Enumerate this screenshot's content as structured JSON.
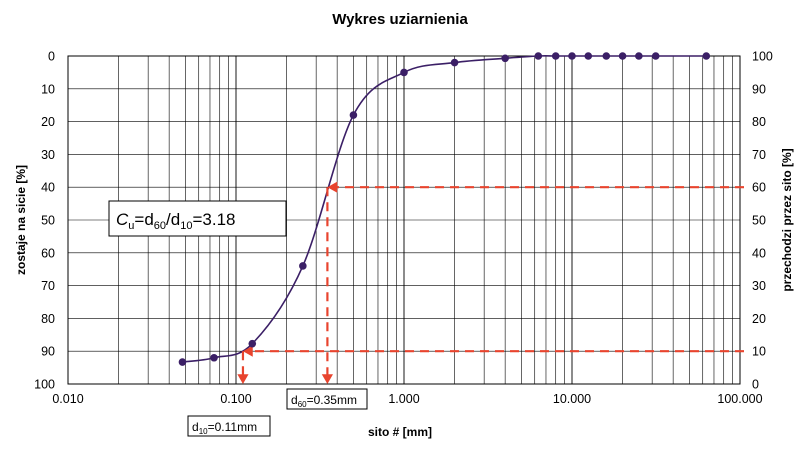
{
  "chart_data": {
    "type": "scatter",
    "title": "Wykres uziarnienia",
    "xlabel": "sito # [mm]",
    "ylabel_left": "zostaje na sicie [%]",
    "ylabel_right": "przechodzi przez sito [%]",
    "x_scale": "log",
    "xlim": [
      0.01,
      100
    ],
    "ylim": [
      0,
      100
    ],
    "x_tick_labels": [
      "0.010",
      "0.100",
      "1.000",
      "10.000",
      "100.000"
    ],
    "y_left_tick_labels": [
      "0",
      "10",
      "20",
      "30",
      "40",
      "50",
      "60",
      "70",
      "80",
      "90",
      "100"
    ],
    "y_right_tick_labels": [
      "100",
      "90",
      "80",
      "70",
      "60",
      "50",
      "40",
      "30",
      "20",
      "10",
      "0"
    ],
    "grid": true,
    "series": [
      {
        "color": "#3b1f66",
        "x": [
          0.048,
          0.074,
          0.125,
          0.25,
          0.5,
          1.0,
          2.0,
          4.0,
          6.3,
          8.0,
          10.0,
          12.5,
          16.0,
          20.0,
          25.0,
          31.5,
          63.0
        ],
        "y_passing": [
          6.7,
          8.0,
          12.3,
          36.0,
          82.0,
          95.0,
          98.0,
          99.3,
          100,
          100,
          100,
          100,
          100,
          100,
          100,
          100,
          100
        ]
      }
    ],
    "annotations": {
      "cu_prefix": "C",
      "cu_sub": "u",
      "cu_mid": "=d",
      "cu_sub60": "60",
      "cu_slash": "/d",
      "cu_sub10": "10",
      "cu_value": "=3.18",
      "d10_prefix": "d",
      "d10_sub": "10",
      "d10_value": "=0.11mm",
      "d60_prefix": "d",
      "d60_sub": "60",
      "d60_value": "=0.35mm",
      "d10_x": 0.11,
      "d60_x": 0.35,
      "d10_level": 10,
      "d60_level": 60,
      "marker_color": "#e8442e"
    }
  }
}
